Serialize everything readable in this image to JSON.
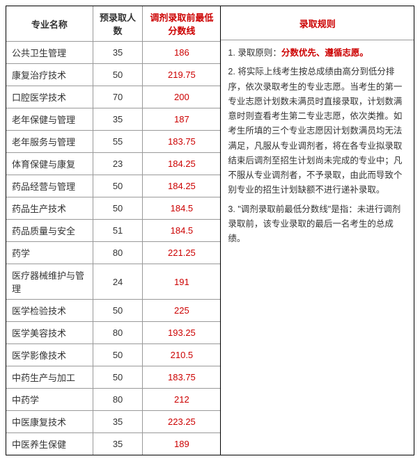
{
  "headers": {
    "name": "专业名称",
    "count": "预录取人数",
    "score": "调剂录取前最低分数线",
    "rules": "录取规则"
  },
  "rows": [
    {
      "name": "公共卫生管理",
      "count": "35",
      "score": "186"
    },
    {
      "name": "康复治疗技术",
      "count": "50",
      "score": "219.75"
    },
    {
      "name": "口腔医学技术",
      "count": "70",
      "score": "200"
    },
    {
      "name": "老年保健与管理",
      "count": "35",
      "score": "187"
    },
    {
      "name": "老年服务与管理",
      "count": "55",
      "score": "183.75"
    },
    {
      "name": "体育保健与康复",
      "count": "23",
      "score": "184.25"
    },
    {
      "name": "药品经营与管理",
      "count": "50",
      "score": "184.25"
    },
    {
      "name": "药品生产技术",
      "count": "50",
      "score": "184.5"
    },
    {
      "name": "药品质量与安全",
      "count": "51",
      "score": "184.5"
    },
    {
      "name": "药学",
      "count": "80",
      "score": "221.25"
    },
    {
      "name": "医疗器械维护与管理",
      "count": "24",
      "score": "191"
    },
    {
      "name": "医学检验技术",
      "count": "50",
      "score": "225"
    },
    {
      "name": "医学美容技术",
      "count": "80",
      "score": "193.25"
    },
    {
      "name": "医学影像技术",
      "count": "50",
      "score": "210.5"
    },
    {
      "name": "中药生产与加工",
      "count": "50",
      "score": "183.75"
    },
    {
      "name": "中药学",
      "count": "80",
      "score": "212"
    },
    {
      "name": "中医康复技术",
      "count": "35",
      "score": "223.25"
    },
    {
      "name": "中医养生保健",
      "count": "35",
      "score": "189"
    }
  ],
  "rules": {
    "p1_prefix": "1. 录取原则：",
    "p1_highlight": "分数优先、遵循志愿。",
    "p2": "2. 将实际上线考生按总成绩由高分到低分排序，依次录取考生的专业志愿。当考生的第一专业志愿计划数未满员时直接录取，计划数满意时则查看考生第二专业志愿，依次类推。如考生所填的三个专业志愿因计划数满员均无法满足，凡服从专业调剂者，将在各专业拟录取结束后调剂至招生计划尚未完成的专业中；凡不服从专业调剂者，不予录取，由此而导致个别专业的招生计划缺额不进行递补录取。",
    "p3": "3. \"调剂录取前最低分数线\"是指：未进行调剂录取前，该专业录取的最后一名考生的总成绩。"
  },
  "colors": {
    "accent_red": "#c00",
    "border_dark": "#000",
    "border_light": "#999",
    "text": "#333"
  }
}
